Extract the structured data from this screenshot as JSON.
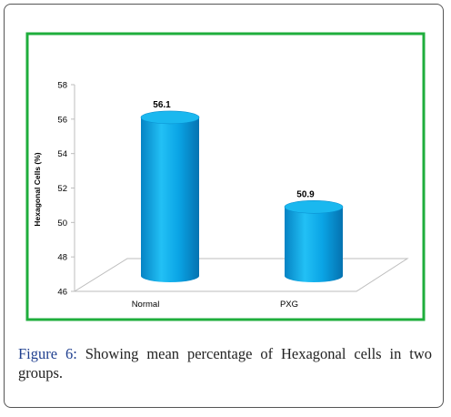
{
  "chart_data": {
    "type": "bar",
    "categories": [
      "Normal",
      "PXG"
    ],
    "values": [
      56.1,
      50.9
    ],
    "data_labels": [
      "56.1",
      "50.9"
    ],
    "xlabel": "",
    "ylabel": "Hexagonal Cells (%)",
    "ylim": [
      46,
      58
    ],
    "yticks": [
      46,
      48,
      50,
      52,
      54,
      56,
      58
    ],
    "bar_color": "#00a7e8",
    "grid": false,
    "legend": "none",
    "border_color": "#1fae3c"
  },
  "caption": {
    "label": "Figure 6:",
    "text": " Showing mean percentage of Hexagonal cells in two groups."
  }
}
